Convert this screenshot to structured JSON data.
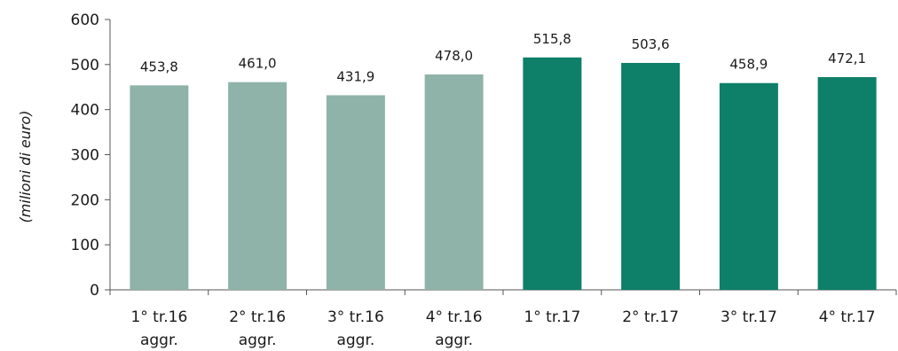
{
  "chart_data": {
    "type": "bar",
    "categories": [
      [
        "1° tr.16",
        "aggr."
      ],
      [
        "2° tr.16",
        "aggr."
      ],
      [
        "3° tr.16",
        "aggr."
      ],
      [
        "4° tr.16",
        "aggr."
      ],
      [
        "1° tr.17",
        ""
      ],
      [
        "2° tr.17",
        ""
      ],
      [
        "3° tr.17",
        ""
      ],
      [
        "4° tr.17",
        ""
      ]
    ],
    "values": [
      453.8,
      461.0,
      431.9,
      478.0,
      515.8,
      503.6,
      458.9,
      472.1
    ],
    "value_labels": [
      "453,8",
      "461,0",
      "431,9",
      "478,0",
      "515,8",
      "503,6",
      "458,9",
      "472,1"
    ],
    "bar_colors": [
      "#8fb3a8",
      "#8fb3a8",
      "#8fb3a8",
      "#8fb3a8",
      "#0e7f69",
      "#0e7f69",
      "#0e7f69",
      "#0e7f69"
    ],
    "title": "",
    "xlabel": "",
    "ylabel": "(milioni di euro)",
    "ylim": [
      0,
      600
    ],
    "yticks": [
      0,
      100,
      200,
      300,
      400,
      500,
      600
    ],
    "grid": false,
    "legend": "none"
  },
  "colors": {
    "axis": "#555555",
    "text": "#1a1a1a"
  }
}
